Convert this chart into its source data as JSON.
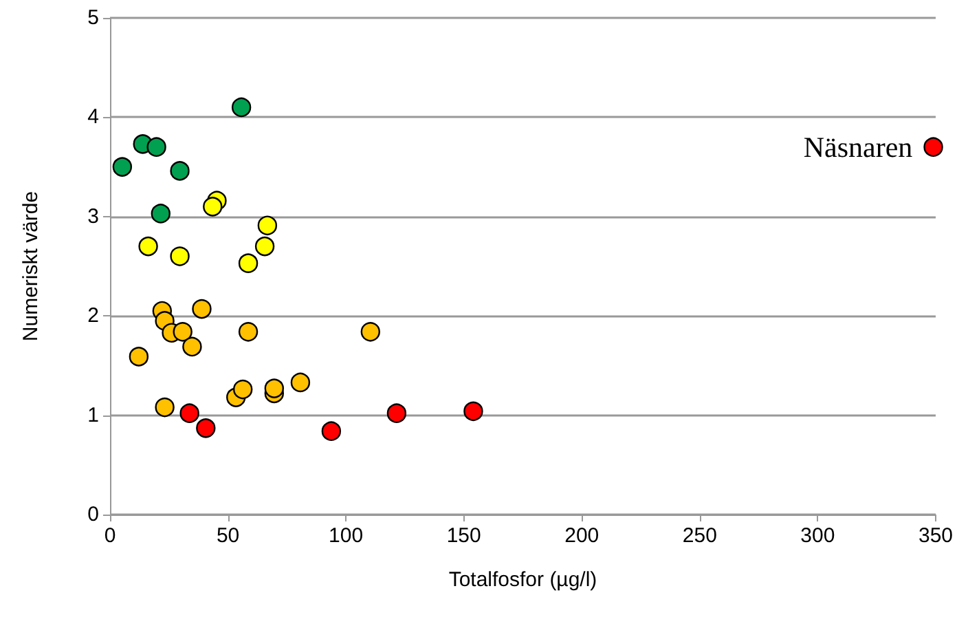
{
  "chart_data": {
    "type": "scatter",
    "xlabel": "Totalfosfor (µg/l)",
    "ylabel": "Numeriskt värde",
    "xlim": [
      0,
      350
    ],
    "xticks": [
      0,
      50,
      100,
      150,
      200,
      250,
      300,
      350
    ],
    "ylim": [
      0,
      5
    ],
    "yticks": [
      0,
      1,
      2,
      3,
      4,
      5
    ],
    "grid": "y",
    "marker": "circle",
    "series": [
      {
        "color": "#00a050",
        "x": [
          55.7,
          13.9,
          19.7,
          5.2,
          29.6,
          21.5
        ],
        "values": [
          4.1,
          3.73,
          3.7,
          3.5,
          3.46,
          3.03
        ]
      },
      {
        "color": "#ffff00",
        "x": [
          45.3,
          43.5,
          66.7,
          65.6,
          16.2,
          29.6,
          58.6
        ],
        "values": [
          3.16,
          3.1,
          2.91,
          2.7,
          2.7,
          2.6,
          2.53
        ]
      },
      {
        "color": "#ffc000",
        "x": [
          22.1,
          38.9,
          23.2,
          26.1,
          30.8,
          34.8,
          58.6,
          12.2,
          110.4,
          23.2,
          53.4,
          56.3,
          69.6,
          69.6,
          80.7
        ],
        "values": [
          2.05,
          2.07,
          1.95,
          1.83,
          1.84,
          1.69,
          1.84,
          1.59,
          1.84,
          1.08,
          1.18,
          1.26,
          1.22,
          1.27,
          1.33
        ]
      },
      {
        "color": "#ff0000",
        "x": [
          33.7,
          40.6,
          93.8,
          121.5,
          154
        ],
        "values": [
          1.02,
          0.87,
          0.84,
          1.02,
          1.04
        ]
      },
      {
        "name": "Näsnaren",
        "color": "#ff0000",
        "x": [
          349
        ],
        "values": [
          3.7
        ]
      }
    ]
  }
}
